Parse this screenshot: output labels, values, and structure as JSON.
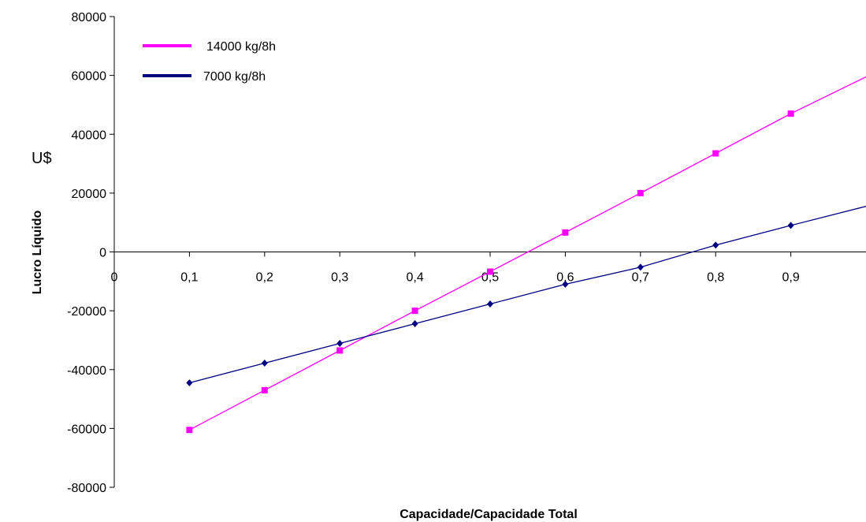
{
  "chart_data": {
    "type": "line",
    "title": "",
    "xlabel": "Capacidade/Capacidade Total",
    "ylabel": "Lucro Líquido",
    "y_unit_label": "U$",
    "xlim": [
      0,
      1
    ],
    "ylim": [
      -80000,
      80000
    ],
    "x_ticks": [
      "0",
      "0,1",
      "0,2",
      "0,3",
      "0,4",
      "0,5",
      "0,6",
      "0,7",
      "0,8",
      "0,9"
    ],
    "y_ticks": [
      "80000",
      "60000",
      "40000",
      "20000",
      "0",
      "-20000",
      "-40000",
      "-60000",
      "-80000"
    ],
    "grid": false,
    "legend_position": "top-left",
    "series": [
      {
        "name": "14000 kg/8h",
        "color": "#ff00ff",
        "marker": "square",
        "x": [
          0.1,
          0.2,
          0.3,
          0.4,
          0.5,
          0.6,
          0.7,
          0.8,
          0.9
        ],
        "y": [
          -60500,
          -47000,
          -33500,
          -20000,
          -6700,
          6600,
          20000,
          33500,
          47000
        ],
        "trend_end": {
          "x": 1.0,
          "y": 59500
        }
      },
      {
        "name": "7000 kg/8h",
        "color": "#000080",
        "marker": "diamond",
        "x": [
          0.1,
          0.2,
          0.3,
          0.4,
          0.5,
          0.6,
          0.7,
          0.8,
          0.9
        ],
        "y": [
          -44500,
          -37800,
          -31100,
          -24400,
          -17700,
          -11000,
          -5200,
          2300,
          9000
        ],
        "trend_end": {
          "x": 1.0,
          "y": 15500
        }
      }
    ]
  }
}
